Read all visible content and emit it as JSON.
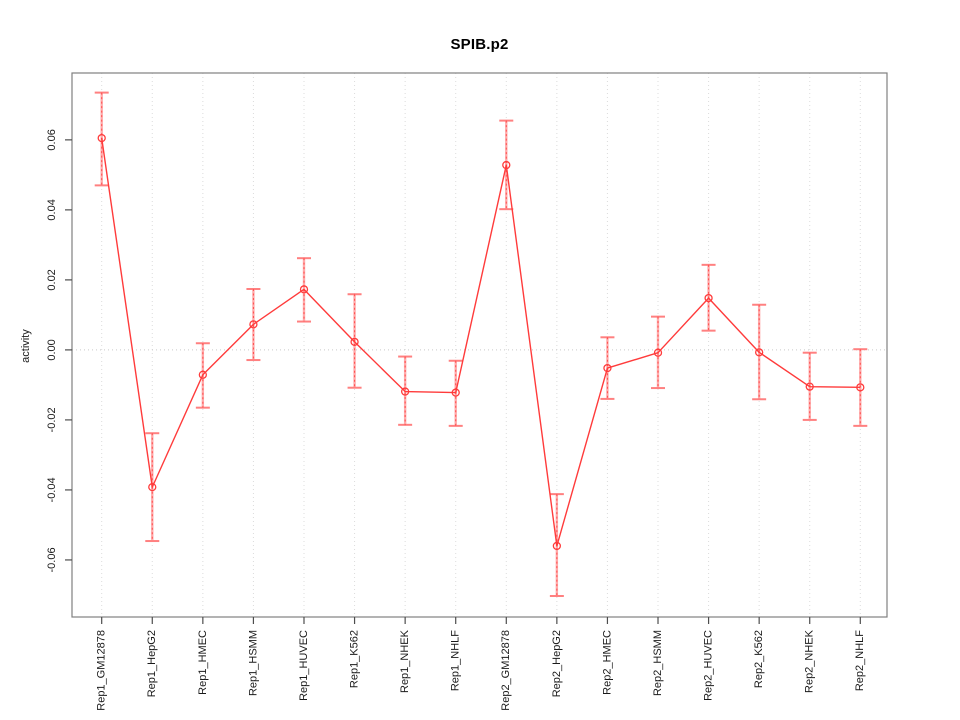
{
  "chart_data": {
    "type": "line",
    "title": "SPIB.p2",
    "xlabel": "",
    "ylabel": "activity",
    "legend_position": "none",
    "categories": [
      "Rep1_GM12878",
      "Rep1_HepG2",
      "Rep1_HMEC",
      "Rep1_HSMM",
      "Rep1_HUVEC",
      "Rep1_K562",
      "Rep1_NHEK",
      "Rep1_NHLF",
      "Rep2_GM12878",
      "Rep2_HepG2",
      "Rep2_HMEC",
      "Rep2_HSMM",
      "Rep2_HUVEC",
      "Rep2_K562",
      "Rep2_NHEK",
      "Rep2_NHLF"
    ],
    "series": [
      {
        "name": "activity",
        "values": [
          0.0605,
          -0.0392,
          -0.0071,
          0.0073,
          0.0173,
          0.0023,
          -0.0119,
          -0.0122,
          0.0528,
          -0.056,
          -0.0052,
          -0.0008,
          0.0148,
          -0.0007,
          -0.0105,
          -0.0107
        ],
        "ci_lower": [
          0.047,
          -0.0546,
          -0.0165,
          -0.0029,
          0.0081,
          -0.0108,
          -0.0214,
          -0.0217,
          0.0402,
          -0.0703,
          -0.014,
          -0.0109,
          0.0055,
          -0.0141,
          -0.02,
          -0.0217
        ],
        "ci_upper": [
          0.0735,
          -0.0238,
          0.0019,
          0.0174,
          0.0262,
          0.0159,
          -0.0019,
          -0.0031,
          0.0655,
          -0.0412,
          0.0036,
          0.0095,
          0.0243,
          0.0129,
          -0.0008,
          0.0002
        ]
      }
    ],
    "yticks": {
      "values": [
        -0.06,
        -0.04,
        -0.02,
        0.0,
        0.02,
        0.04,
        0.06
      ],
      "labels": [
        "-0.06",
        "-0.04",
        "-0.02",
        "0.00",
        "0.02",
        "0.04",
        "0.06"
      ]
    },
    "ylim": [
      -0.0763,
      0.0791
    ],
    "grid": {
      "vertical_gridlines": true,
      "horizontal_zero_line": true,
      "style": "dotted"
    },
    "marker": "open-circle",
    "colors": {
      "line": "#ff3b3b",
      "marker": "#ff3b3b",
      "error_bar": "#ffabab",
      "error_bar_cap": "#ff8080",
      "error_bar_dotted": "#ff4d4d",
      "gridline": "#dcdcdc",
      "zero_line": "#c9c9c9",
      "box": "#808080",
      "tick": "#4d4d4d",
      "text": "#1a1a1a",
      "background": "#ffffff"
    }
  }
}
